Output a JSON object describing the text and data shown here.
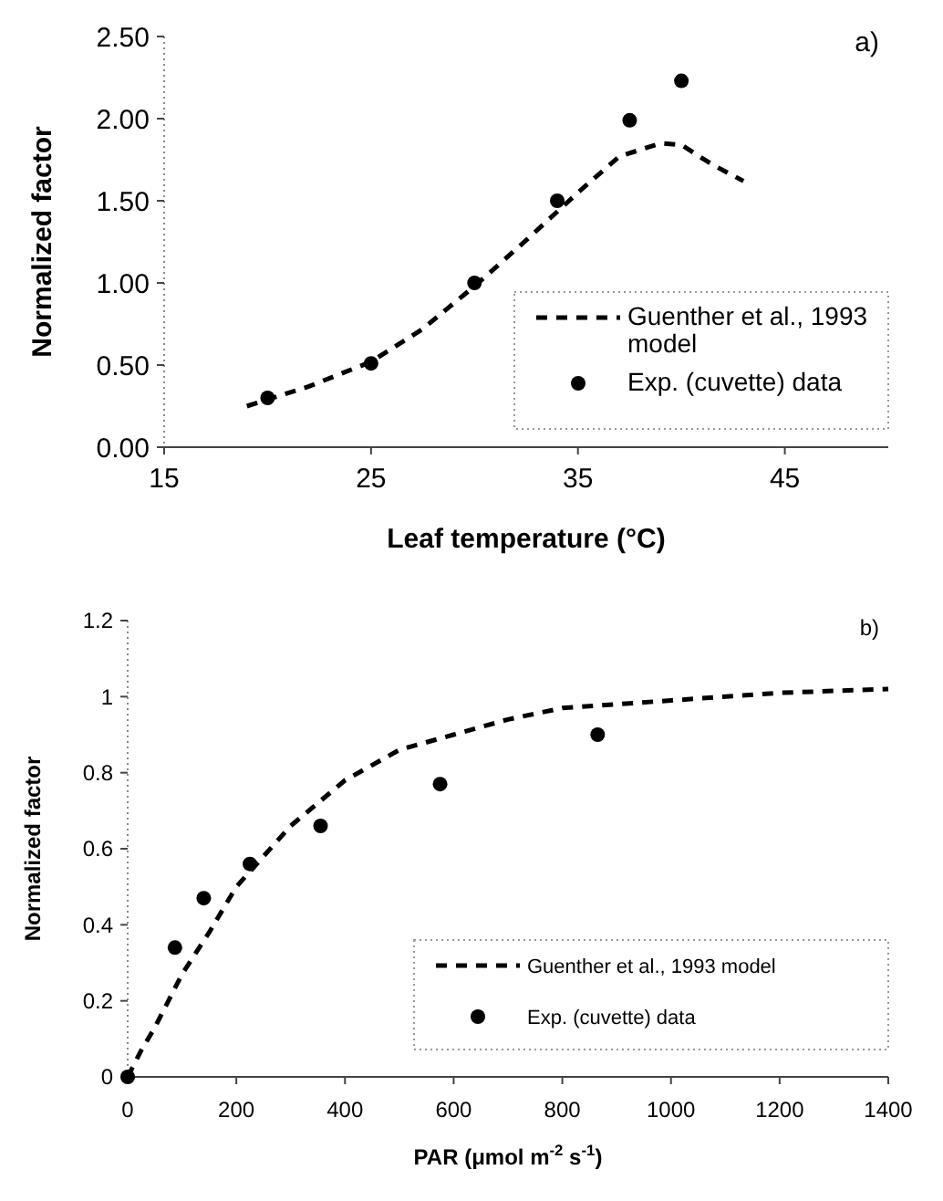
{
  "chart_data": [
    {
      "type": "scatter",
      "xlabel": "Leaf temperature (°C)",
      "ylabel": "Normalized factor",
      "annotations": [
        "a)"
      ],
      "xlim": [
        15,
        50
      ],
      "xticks": [
        15,
        25,
        35,
        45
      ],
      "ylim": [
        0,
        2.5
      ],
      "yticks": [
        {
          "value": 0,
          "label": "0.00"
        },
        {
          "value": 0.5,
          "label": "0.50"
        },
        {
          "value": 1,
          "label": "1.00"
        },
        {
          "value": 1.5,
          "label": "1.50"
        },
        {
          "value": 2,
          "label": "2.00"
        },
        {
          "value": 2.5,
          "label": "2.50"
        }
      ],
      "grid": false,
      "legend": "bottom right",
      "series": [
        {
          "name": "Guenther et al., 1993 model",
          "type": "line",
          "line_style": "dashed",
          "marker": "none",
          "color": "#000000",
          "x": [
            19,
            22,
            25,
            27.5,
            30,
            32.5,
            35,
            37,
            39,
            40,
            41.5,
            43
          ],
          "values": [
            0.25,
            0.37,
            0.52,
            0.72,
            0.98,
            1.26,
            1.55,
            1.77,
            1.85,
            1.84,
            1.72,
            1.62
          ]
        },
        {
          "name": "Exp. (cuvette) data",
          "marker": "circle",
          "color": "#000000",
          "x": [
            20,
            25,
            30,
            34,
            37.5,
            40
          ],
          "values": [
            0.3,
            0.51,
            1.0,
            1.5,
            1.99,
            2.23
          ]
        }
      ]
    },
    {
      "type": "scatter",
      "xlabel": "PAR (μmol m$^{-2}$ s$^{-1}$)",
      "ylabel": "Normalized factor",
      "annotations": [
        "b)"
      ],
      "xlim": [
        0,
        1400
      ],
      "xticks": [
        0,
        200,
        400,
        600,
        800,
        1000,
        1200,
        1400
      ],
      "ylim": [
        0,
        1.2
      ],
      "yticks": [
        0,
        0.2,
        0.4,
        0.6,
        0.8,
        1,
        1.2
      ],
      "grid": false,
      "legend": "bottom right",
      "series": [
        {
          "name": "Guenther et al., 1993 model",
          "type": "line",
          "line_style": "dashed",
          "marker": "none",
          "color": "#000000",
          "x": [
            0,
            25,
            50,
            100,
            150,
            200,
            250,
            300,
            350,
            400,
            500,
            600,
            700,
            800,
            900,
            1000,
            1200,
            1400
          ],
          "values": [
            0,
            0.07,
            0.13,
            0.27,
            0.38,
            0.5,
            0.58,
            0.66,
            0.72,
            0.78,
            0.86,
            0.9,
            0.94,
            0.97,
            0.98,
            0.99,
            1.01,
            1.02
          ]
        },
        {
          "name": "Exp. (cuvette) data",
          "marker": "circle",
          "color": "#000000",
          "x": [
            0,
            87,
            140,
            225,
            355,
            575,
            865
          ],
          "values": [
            0,
            0.34,
            0.47,
            0.56,
            0.66,
            0.77,
            0.9
          ]
        }
      ]
    }
  ]
}
